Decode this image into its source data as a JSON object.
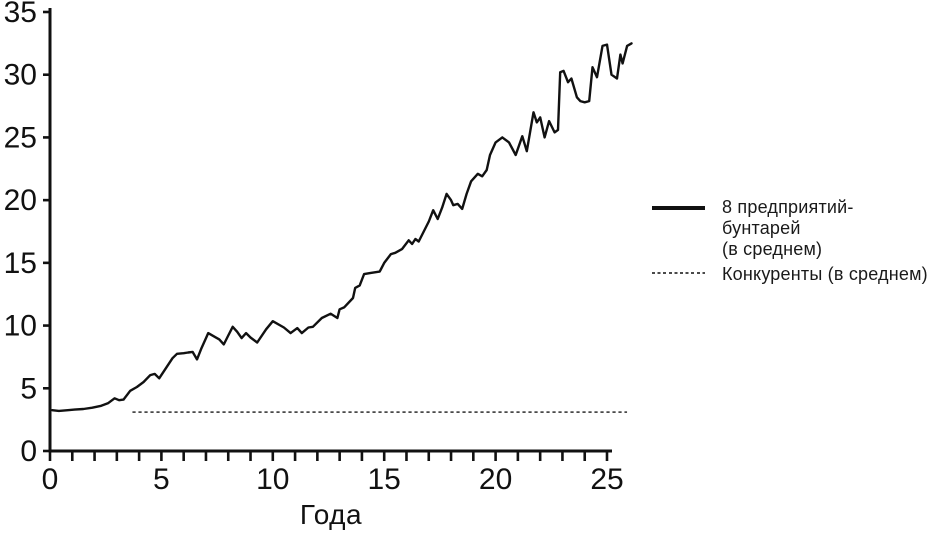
{
  "colors": {
    "background": "#ffffff",
    "axis": "#111111",
    "rebels_line": "#111111",
    "competitors_line": "#4a4a4a",
    "text": "#111111"
  },
  "chart_data": {
    "type": "line",
    "title": "",
    "xlabel": "Года",
    "ylabel": "",
    "xlim": [
      0,
      25
    ],
    "ylim": [
      0,
      35
    ],
    "grid": false,
    "legend_position": "right-outside",
    "x_labeled_ticks": [
      0,
      5,
      10,
      15,
      20,
      25
    ],
    "x_minor_tick_step": 1,
    "y_labeled_ticks": [
      0,
      5,
      10,
      15,
      20,
      25,
      30,
      35
    ],
    "series": [
      {
        "name": "8 предприятий-бунтарей (в среднем)",
        "name_multiline": "8 предприятий-бунтарей\n(в среднем)",
        "style": "solid",
        "color": "#111111",
        "points": [
          [
            0.1,
            3.25
          ],
          [
            0.4,
            3.2
          ],
          [
            0.8,
            3.25
          ],
          [
            1.1,
            3.3
          ],
          [
            1.5,
            3.35
          ],
          [
            1.9,
            3.45
          ],
          [
            2.3,
            3.6
          ],
          [
            2.6,
            3.8
          ],
          [
            2.9,
            4.2
          ],
          [
            3.1,
            4.05
          ],
          [
            3.3,
            4.1
          ],
          [
            3.6,
            4.8
          ],
          [
            3.9,
            5.1
          ],
          [
            4.2,
            5.5
          ],
          [
            4.5,
            6.05
          ],
          [
            4.7,
            6.15
          ],
          [
            4.9,
            5.8
          ],
          [
            5.2,
            6.6
          ],
          [
            5.5,
            7.4
          ],
          [
            5.7,
            7.75
          ],
          [
            6.0,
            7.8
          ],
          [
            6.2,
            7.85
          ],
          [
            6.4,
            7.9
          ],
          [
            6.6,
            7.3
          ],
          [
            6.8,
            8.2
          ],
          [
            7.0,
            9.0
          ],
          [
            7.1,
            9.4
          ],
          [
            7.4,
            9.1
          ],
          [
            7.6,
            8.9
          ],
          [
            7.8,
            8.5
          ],
          [
            8.0,
            9.2
          ],
          [
            8.2,
            9.9
          ],
          [
            8.4,
            9.5
          ],
          [
            8.6,
            9.0
          ],
          [
            8.8,
            9.4
          ],
          [
            9.0,
            9.05
          ],
          [
            9.3,
            8.65
          ],
          [
            9.7,
            9.7
          ],
          [
            10.0,
            10.35
          ],
          [
            10.5,
            9.85
          ],
          [
            10.8,
            9.4
          ],
          [
            11.1,
            9.8
          ],
          [
            11.3,
            9.4
          ],
          [
            11.6,
            9.85
          ],
          [
            11.8,
            9.9
          ],
          [
            12.2,
            10.6
          ],
          [
            12.6,
            10.95
          ],
          [
            12.9,
            10.6
          ],
          [
            13.0,
            11.3
          ],
          [
            13.2,
            11.45
          ],
          [
            13.6,
            12.2
          ],
          [
            13.7,
            13.0
          ],
          [
            13.9,
            13.2
          ],
          [
            14.1,
            14.1
          ],
          [
            14.4,
            14.2
          ],
          [
            14.8,
            14.3
          ],
          [
            15.0,
            15.0
          ],
          [
            15.3,
            15.7
          ],
          [
            15.5,
            15.8
          ],
          [
            15.8,
            16.1
          ],
          [
            16.1,
            16.8
          ],
          [
            16.25,
            16.5
          ],
          [
            16.4,
            16.9
          ],
          [
            16.55,
            16.7
          ],
          [
            17.0,
            18.3
          ],
          [
            17.2,
            19.2
          ],
          [
            17.4,
            18.5
          ],
          [
            17.6,
            19.4
          ],
          [
            17.8,
            20.5
          ],
          [
            18.0,
            20.0
          ],
          [
            18.1,
            19.6
          ],
          [
            18.3,
            19.7
          ],
          [
            18.5,
            19.3
          ],
          [
            18.7,
            20.5
          ],
          [
            18.9,
            21.5
          ],
          [
            19.2,
            22.1
          ],
          [
            19.4,
            21.9
          ],
          [
            19.6,
            22.4
          ],
          [
            19.75,
            23.6
          ],
          [
            20.0,
            24.6
          ],
          [
            20.3,
            25.0
          ],
          [
            20.6,
            24.6
          ],
          [
            20.9,
            23.6
          ],
          [
            21.2,
            25.1
          ],
          [
            21.4,
            23.9
          ],
          [
            21.7,
            27.0
          ],
          [
            21.85,
            26.2
          ],
          [
            22.0,
            26.6
          ],
          [
            22.2,
            25.0
          ],
          [
            22.4,
            26.3
          ],
          [
            22.65,
            25.4
          ],
          [
            22.8,
            25.6
          ],
          [
            22.9,
            30.2
          ],
          [
            23.05,
            30.3
          ],
          [
            23.25,
            29.4
          ],
          [
            23.4,
            29.7
          ],
          [
            23.65,
            28.2
          ],
          [
            23.8,
            27.9
          ],
          [
            24.0,
            27.8
          ],
          [
            24.2,
            27.9
          ],
          [
            24.35,
            30.6
          ],
          [
            24.55,
            29.8
          ],
          [
            24.8,
            32.3
          ],
          [
            25.0,
            32.4
          ],
          [
            25.2,
            30.0
          ],
          [
            25.45,
            29.7
          ],
          [
            25.6,
            31.6
          ],
          [
            25.7,
            30.9
          ],
          [
            25.9,
            32.3
          ],
          [
            26.1,
            32.5
          ]
        ]
      },
      {
        "name": "Конкуренты (в среднем)",
        "style": "dotted",
        "color": "#4a4a4a",
        "constant_value": 3.1,
        "x_start": 3.7,
        "x_end": 25.9,
        "points": [
          [
            3.7,
            3.1
          ],
          [
            25.9,
            3.1
          ]
        ]
      }
    ]
  }
}
